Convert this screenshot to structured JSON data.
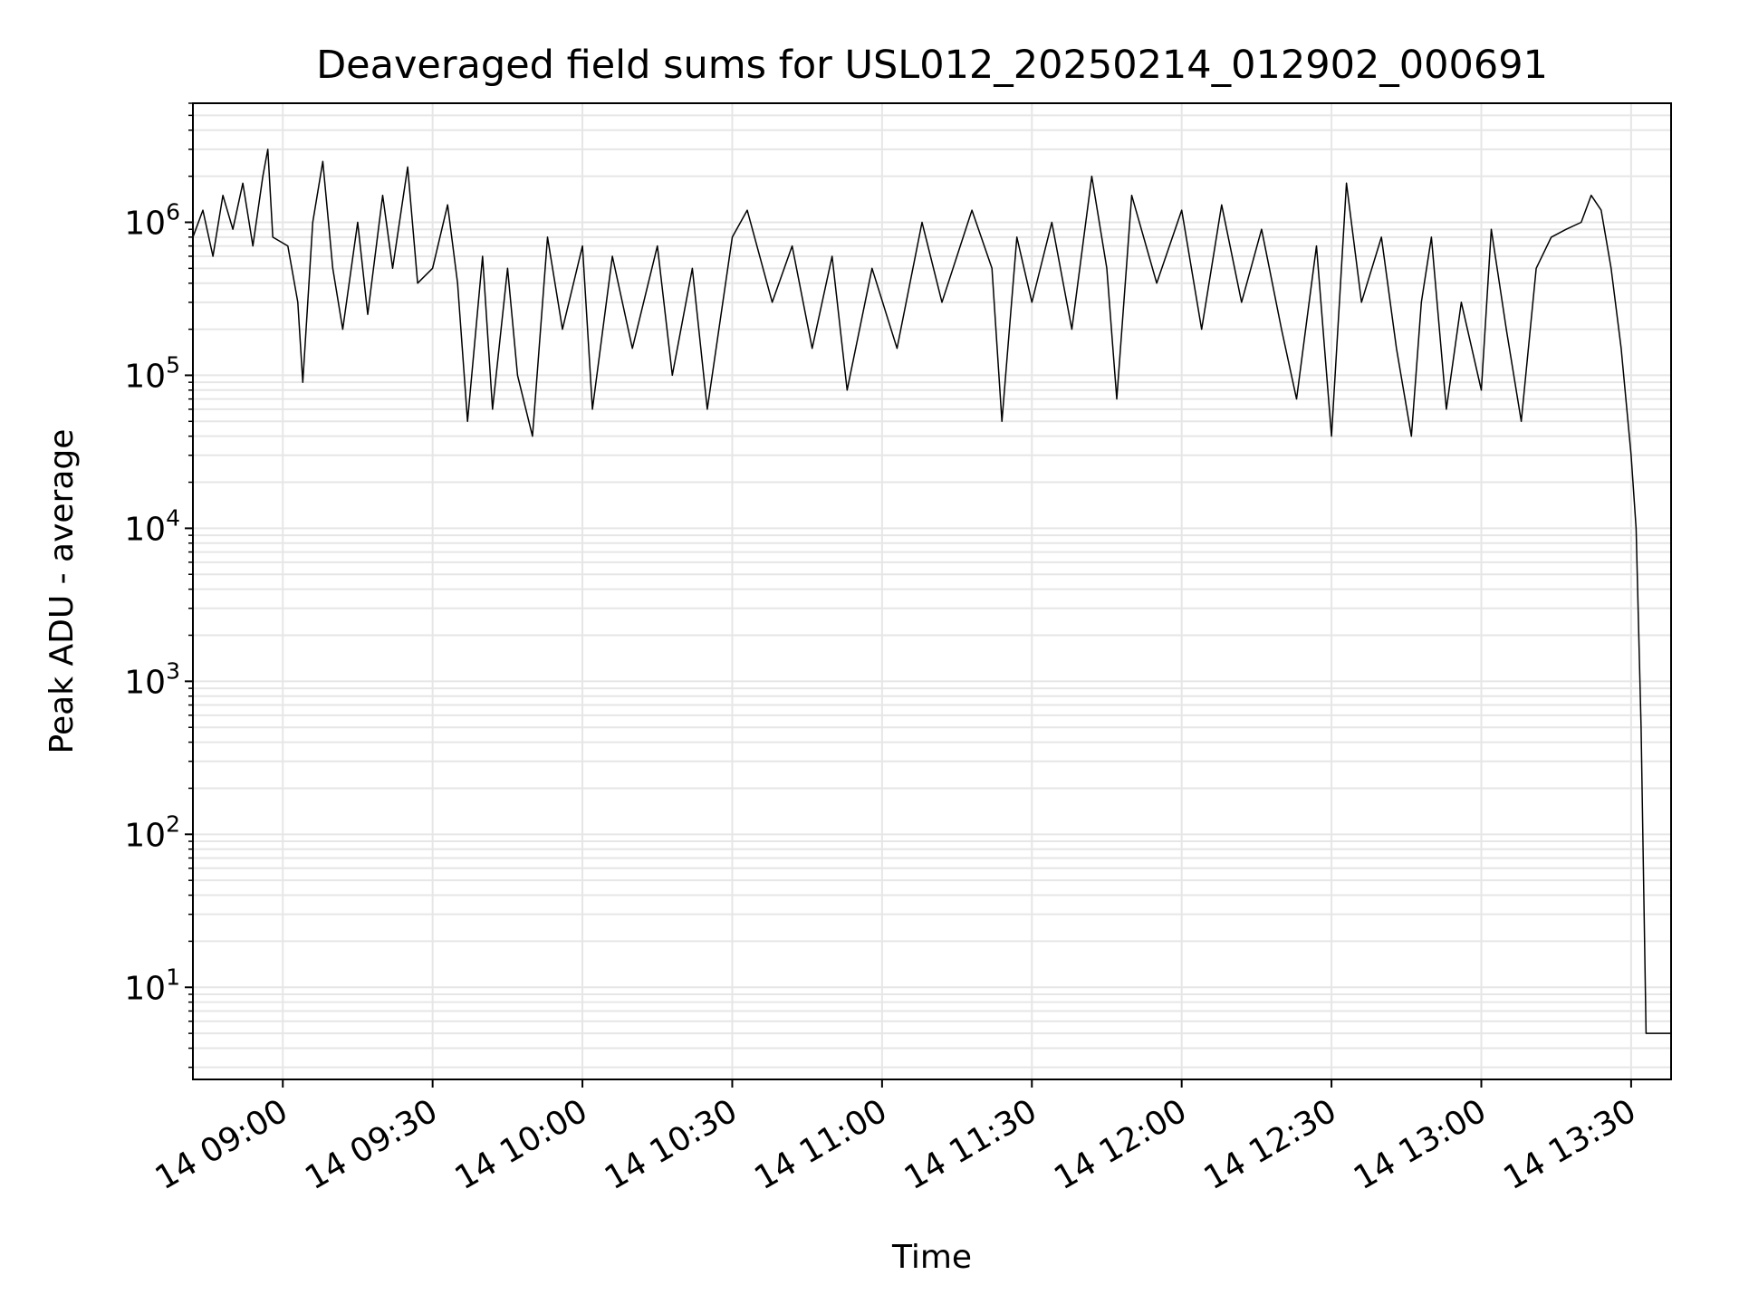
{
  "chart_data": {
    "type": "line",
    "title": "Deaveraged field sums for USL012_20250214_012902_000691",
    "xlabel": "Time",
    "ylabel": "Peak ADU - average",
    "yscale": "log",
    "grid": true,
    "xlim": [
      "14 08:42",
      "14 13:38"
    ],
    "ylim": [
      2.5,
      6000000
    ],
    "x_ticks": [
      "14 09:00",
      "14 09:30",
      "14 10:00",
      "14 10:30",
      "14 11:00",
      "14 11:30",
      "14 12:00",
      "14 12:30",
      "14 13:00",
      "14 13:30"
    ],
    "y_ticks": [
      {
        "base": "10",
        "exp": "1",
        "value": 10
      },
      {
        "base": "10",
        "exp": "2",
        "value": 100
      },
      {
        "base": "10",
        "exp": "3",
        "value": 1000
      },
      {
        "base": "10",
        "exp": "4",
        "value": 10000
      },
      {
        "base": "10",
        "exp": "5",
        "value": 100000
      },
      {
        "base": "10",
        "exp": "6",
        "value": 1000000
      }
    ],
    "series": [
      {
        "color": "#000000",
        "points": [
          [
            "14 08:42",
            800000
          ],
          [
            "14 08:44",
            1200000
          ],
          [
            "14 08:46",
            600000
          ],
          [
            "14 08:48",
            1500000
          ],
          [
            "14 08:50",
            900000
          ],
          [
            "14 08:52",
            1800000
          ],
          [
            "14 08:54",
            700000
          ],
          [
            "14 08:56",
            2000000
          ],
          [
            "14 08:57",
            3000000
          ],
          [
            "14 08:58",
            800000
          ],
          [
            "14 09:01",
            700000
          ],
          [
            "14 09:03",
            300000
          ],
          [
            "14 09:04",
            90000
          ],
          [
            "14 09:06",
            1000000
          ],
          [
            "14 09:08",
            2500000
          ],
          [
            "14 09:10",
            500000
          ],
          [
            "14 09:12",
            200000
          ],
          [
            "14 09:15",
            1000000
          ],
          [
            "14 09:17",
            250000
          ],
          [
            "14 09:20",
            1500000
          ],
          [
            "14 09:22",
            500000
          ],
          [
            "14 09:25",
            2300000
          ],
          [
            "14 09:27",
            400000
          ],
          [
            "14 09:30",
            500000
          ],
          [
            "14 09:33",
            1300000
          ],
          [
            "14 09:35",
            400000
          ],
          [
            "14 09:37",
            50000
          ],
          [
            "14 09:40",
            600000
          ],
          [
            "14 09:42",
            60000
          ],
          [
            "14 09:45",
            500000
          ],
          [
            "14 09:47",
            100000
          ],
          [
            "14 09:50",
            40000
          ],
          [
            "14 09:53",
            800000
          ],
          [
            "14 09:56",
            200000
          ],
          [
            "14 10:00",
            700000
          ],
          [
            "14 10:02",
            60000
          ],
          [
            "14 10:06",
            600000
          ],
          [
            "14 10:10",
            150000
          ],
          [
            "14 10:15",
            700000
          ],
          [
            "14 10:18",
            100000
          ],
          [
            "14 10:22",
            500000
          ],
          [
            "14 10:25",
            60000
          ],
          [
            "14 10:30",
            800000
          ],
          [
            "14 10:33",
            1200000
          ],
          [
            "14 10:38",
            300000
          ],
          [
            "14 10:42",
            700000
          ],
          [
            "14 10:46",
            150000
          ],
          [
            "14 10:50",
            600000
          ],
          [
            "14 10:53",
            80000
          ],
          [
            "14 10:58",
            500000
          ],
          [
            "14 11:03",
            150000
          ],
          [
            "14 11:08",
            1000000
          ],
          [
            "14 11:12",
            300000
          ],
          [
            "14 11:18",
            1200000
          ],
          [
            "14 11:22",
            500000
          ],
          [
            "14 11:24",
            50000
          ],
          [
            "14 11:27",
            800000
          ],
          [
            "14 11:30",
            300000
          ],
          [
            "14 11:34",
            1000000
          ],
          [
            "14 11:38",
            200000
          ],
          [
            "14 11:42",
            2000000
          ],
          [
            "14 11:45",
            500000
          ],
          [
            "14 11:47",
            70000
          ],
          [
            "14 11:50",
            1500000
          ],
          [
            "14 11:55",
            400000
          ],
          [
            "14 12:00",
            1200000
          ],
          [
            "14 12:04",
            200000
          ],
          [
            "14 12:08",
            1300000
          ],
          [
            "14 12:12",
            300000
          ],
          [
            "14 12:16",
            900000
          ],
          [
            "14 12:20",
            200000
          ],
          [
            "14 12:23",
            70000
          ],
          [
            "14 12:27",
            700000
          ],
          [
            "14 12:30",
            40000
          ],
          [
            "14 12:33",
            1800000
          ],
          [
            "14 12:36",
            300000
          ],
          [
            "14 12:40",
            800000
          ],
          [
            "14 12:43",
            150000
          ],
          [
            "14 12:46",
            40000
          ],
          [
            "14 12:48",
            300000
          ],
          [
            "14 12:50",
            800000
          ],
          [
            "14 12:53",
            60000
          ],
          [
            "14 12:56",
            300000
          ],
          [
            "14 13:00",
            80000
          ],
          [
            "14 13:02",
            900000
          ],
          [
            "14 13:05",
            200000
          ],
          [
            "14 13:08",
            50000
          ],
          [
            "14 13:11",
            500000
          ],
          [
            "14 13:14",
            800000
          ],
          [
            "14 13:17",
            900000
          ],
          [
            "14 13:20",
            1000000
          ],
          [
            "14 13:22",
            1500000
          ],
          [
            "14 13:24",
            1200000
          ],
          [
            "14 13:26",
            500000
          ],
          [
            "14 13:28",
            150000
          ],
          [
            "14 13:30",
            30000
          ],
          [
            "14 13:31",
            10000
          ],
          [
            "14 13:32",
            500
          ],
          [
            "14 13:33",
            5
          ],
          [
            "14 13:38",
            5
          ]
        ]
      }
    ]
  }
}
